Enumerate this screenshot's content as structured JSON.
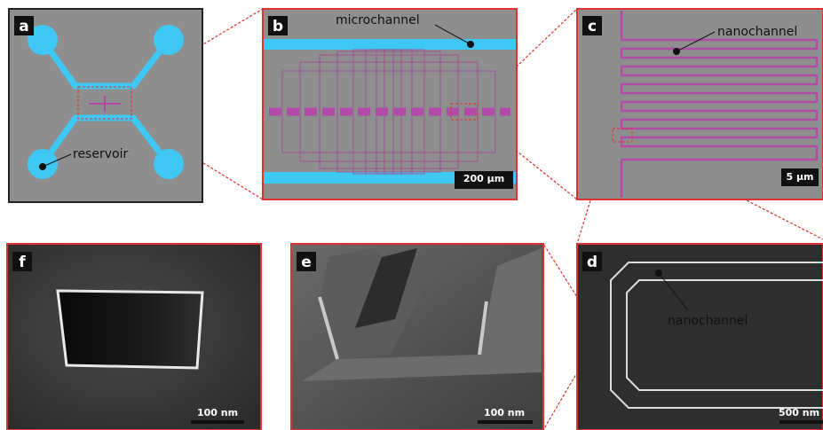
{
  "panels": [
    {
      "label": "a",
      "annotation": "reservoir"
    },
    {
      "label": "b",
      "annotation": "microchannel",
      "scale_bar": "200 µm"
    },
    {
      "label": "c",
      "annotation": "nanochannel",
      "scale_bar": "5 µm"
    },
    {
      "label": "f",
      "scale_bar": "100 nm"
    },
    {
      "label": "e",
      "scale_bar": "100 nm"
    },
    {
      "label": "d",
      "annotation": "nanochannel",
      "scale_bar": "500 nm"
    }
  ]
}
